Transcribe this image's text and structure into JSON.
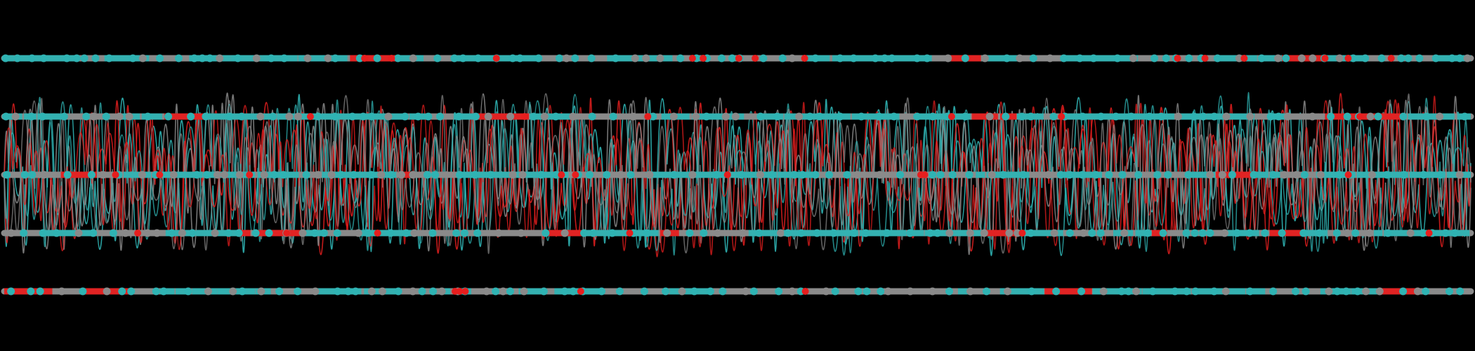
{
  "visualization": {
    "background": "#000000",
    "lane_count": 5,
    "colors": {
      "cyan": "#2fb3b3",
      "red": "#e61e1e",
      "grey": "#8a8a8a"
    },
    "text": []
  }
}
